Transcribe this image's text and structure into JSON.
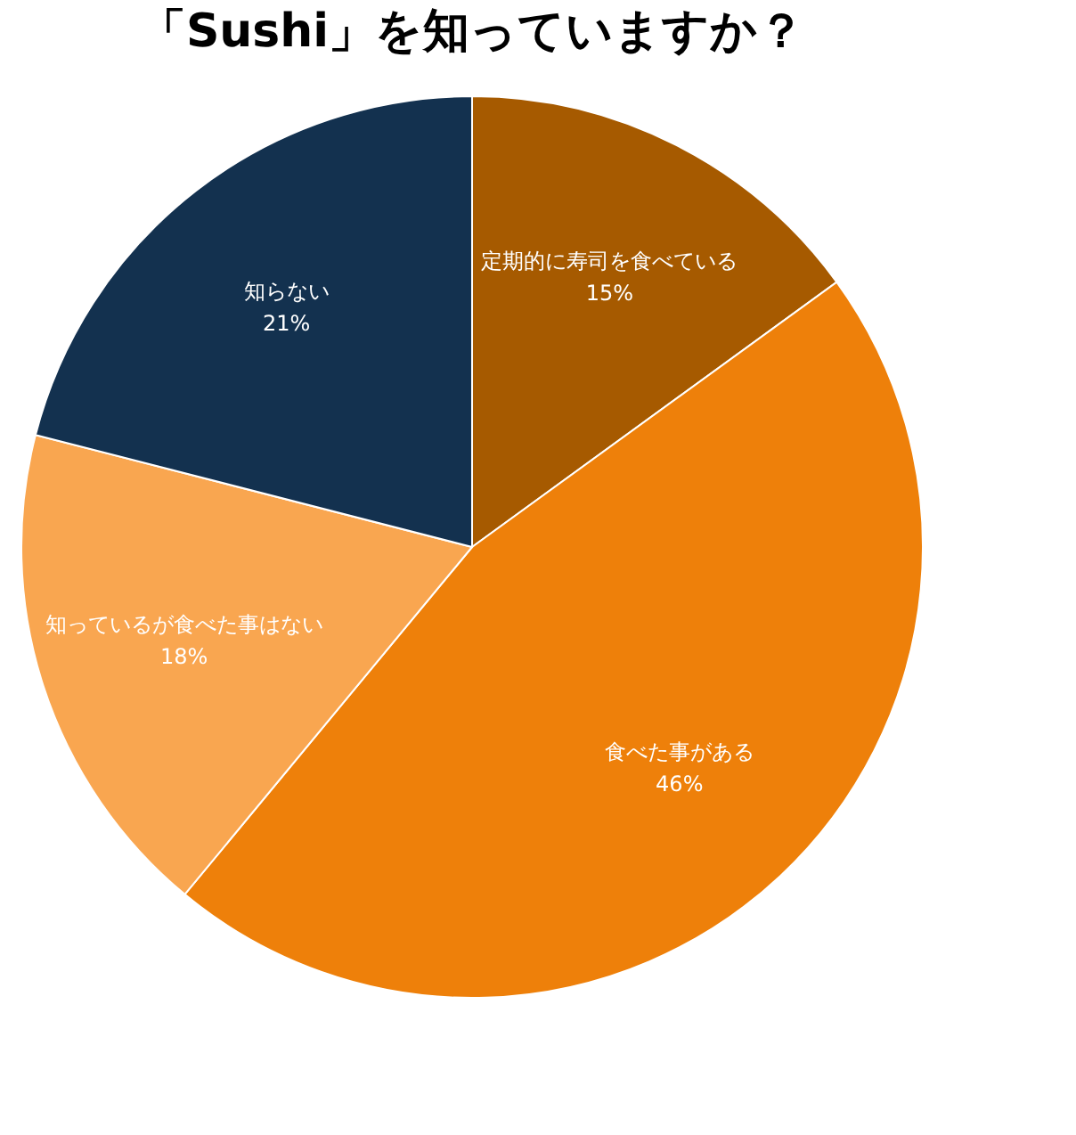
{
  "chart_data": {
    "type": "pie",
    "title": "「Sushi」を知っていますか？",
    "categories": [
      "定期的に寿司を食べている",
      "食べた事がある",
      "知っているが食べた事はない",
      "知らない"
    ],
    "values": [
      15,
      46,
      18,
      21
    ],
    "colors": [
      "#a65a00",
      "#ee800a",
      "#f9a650",
      "#13314f"
    ],
    "value_labels": [
      "15%",
      "46%",
      "18%",
      "21%"
    ],
    "legend": false
  }
}
